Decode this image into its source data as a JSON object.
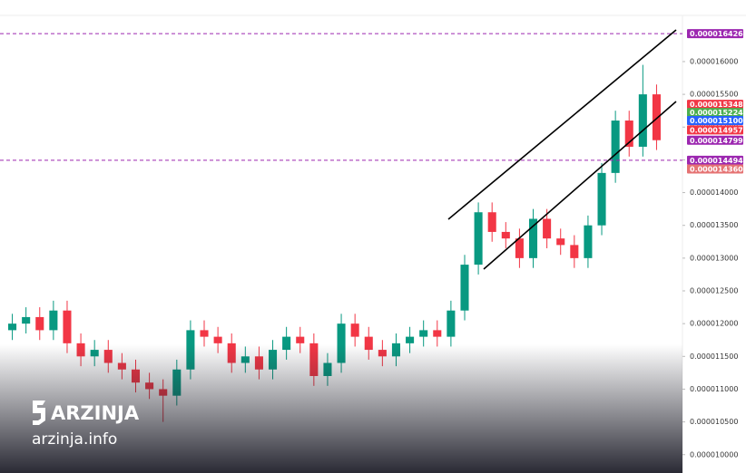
{
  "chart_data": {
    "type": "candlestick",
    "up_color": "#089981",
    "down_color": "#f23645",
    "ylim": [
      9.72e-06,
      1.694e-05
    ],
    "yticks": [
      {
        "value": 1.6e-05,
        "label": "0.000016000"
      },
      {
        "value": 1.55e-05,
        "label": "0.000015500"
      },
      {
        "value": 1.5e-05,
        "label": "0.000015000"
      },
      {
        "value": 1.45e-05,
        "label": "0.000014500"
      },
      {
        "value": 1.4e-05,
        "label": "0.000014000"
      },
      {
        "value": 1.35e-05,
        "label": "0.000013500"
      },
      {
        "value": 1.3e-05,
        "label": "0.000013000"
      },
      {
        "value": 1.25e-05,
        "label": "0.000012500"
      },
      {
        "value": 1.2e-05,
        "label": "0.000012000"
      },
      {
        "value": 1.15e-05,
        "label": "0.000011500"
      },
      {
        "value": 1.1e-05,
        "label": "0.000011000"
      },
      {
        "value": 1.05e-05,
        "label": "0.000010500"
      },
      {
        "value": 1e-05,
        "label": "0.000010000"
      }
    ],
    "open": [
      1.19e-05,
      1.2e-05,
      1.21e-05,
      1.19e-05,
      1.22e-05,
      1.17e-05,
      1.15e-05,
      1.16e-05,
      1.14e-05,
      1.13e-05,
      1.11e-05,
      1.1e-05,
      1.09e-05,
      1.13e-05,
      1.19e-05,
      1.18e-05,
      1.17e-05,
      1.14e-05,
      1.15e-05,
      1.13e-05,
      1.16e-05,
      1.18e-05,
      1.17e-05,
      1.12e-05,
      1.14e-05,
      1.2e-05,
      1.18e-05,
      1.16e-05,
      1.15e-05,
      1.17e-05,
      1.18e-05,
      1.19e-05,
      1.18e-05,
      1.22e-05,
      1.29e-05,
      1.37e-05,
      1.34e-05,
      1.33e-05,
      1.3e-05,
      1.36e-05,
      1.33e-05,
      1.32e-05,
      1.3e-05,
      1.35e-05,
      1.43e-05,
      1.51e-05,
      1.47e-05,
      1.55e-05
    ],
    "high": [
      1.215e-05,
      1.225e-05,
      1.225e-05,
      1.235e-05,
      1.235e-05,
      1.185e-05,
      1.175e-05,
      1.175e-05,
      1.155e-05,
      1.145e-05,
      1.125e-05,
      1.115e-05,
      1.145e-05,
      1.205e-05,
      1.205e-05,
      1.195e-05,
      1.185e-05,
      1.165e-05,
      1.165e-05,
      1.175e-05,
      1.195e-05,
      1.195e-05,
      1.185e-05,
      1.155e-05,
      1.215e-05,
      1.215e-05,
      1.195e-05,
      1.175e-05,
      1.185e-05,
      1.195e-05,
      1.205e-05,
      1.205e-05,
      1.235e-05,
      1.305e-05,
      1.385e-05,
      1.385e-05,
      1.355e-05,
      1.345e-05,
      1.375e-05,
      1.375e-05,
      1.345e-05,
      1.335e-05,
      1.365e-05,
      1.445e-05,
      1.525e-05,
      1.525e-05,
      1.595e-05,
      1.565e-05
    ],
    "low": [
      1.175e-05,
      1.185e-05,
      1.175e-05,
      1.175e-05,
      1.155e-05,
      1.135e-05,
      1.135e-05,
      1.125e-05,
      1.115e-05,
      1.095e-05,
      1.085e-05,
      1.05e-05,
      1.075e-05,
      1.115e-05,
      1.165e-05,
      1.155e-05,
      1.125e-05,
      1.125e-05,
      1.115e-05,
      1.115e-05,
      1.145e-05,
      1.155e-05,
      1.105e-05,
      1.105e-05,
      1.125e-05,
      1.165e-05,
      1.145e-05,
      1.135e-05,
      1.135e-05,
      1.155e-05,
      1.165e-05,
      1.165e-05,
      1.165e-05,
      1.205e-05,
      1.275e-05,
      1.325e-05,
      1.315e-05,
      1.285e-05,
      1.285e-05,
      1.315e-05,
      1.305e-05,
      1.285e-05,
      1.285e-05,
      1.335e-05,
      1.415e-05,
      1.455e-05,
      1.455e-05,
      1.465e-05
    ],
    "close": [
      1.2e-05,
      1.21e-05,
      1.19e-05,
      1.22e-05,
      1.17e-05,
      1.15e-05,
      1.16e-05,
      1.14e-05,
      1.13e-05,
      1.11e-05,
      1.1e-05,
      1.09e-05,
      1.13e-05,
      1.19e-05,
      1.18e-05,
      1.17e-05,
      1.14e-05,
      1.15e-05,
      1.13e-05,
      1.16e-05,
      1.18e-05,
      1.17e-05,
      1.12e-05,
      1.14e-05,
      1.2e-05,
      1.18e-05,
      1.16e-05,
      1.15e-05,
      1.17e-05,
      1.18e-05,
      1.19e-05,
      1.18e-05,
      1.22e-05,
      1.29e-05,
      1.37e-05,
      1.34e-05,
      1.33e-05,
      1.3e-05,
      1.36e-05,
      1.33e-05,
      1.32e-05,
      1.3e-05,
      1.35e-05,
      1.43e-05,
      1.51e-05,
      1.47e-05,
      1.55e-05,
      1.48e-05
    ],
    "price_badges": [
      {
        "value": 1.6426e-05,
        "label": "0.000016426",
        "color": "#9c27b0",
        "dashed": true
      },
      {
        "value": 1.5348e-05,
        "label": "0.000015348",
        "color": "#f23645",
        "dashed": false
      },
      {
        "value": 1.5224e-05,
        "label": "0.000015224",
        "color": "#4caf50",
        "dashed": false
      },
      {
        "value": 1.51e-05,
        "label": "0.000015100",
        "color": "#2962ff",
        "dashed": false
      },
      {
        "value": 1.4957e-05,
        "label": "0.000014957",
        "color": "#f23645",
        "dashed": false
      },
      {
        "value": 1.4799e-05,
        "label": "0.000014799",
        "color": "#9c27b0",
        "dashed": false
      },
      {
        "value": 1.4494e-05,
        "label": "0.000014494",
        "color": "#9c27b0",
        "dashed": true
      },
      {
        "value": 1.436e-05,
        "label": "0.000014360",
        "color": "#e57373",
        "dashed": false
      }
    ],
    "watermark": {
      "brand": "ARZINJA",
      "site": "arzinja.info"
    }
  }
}
